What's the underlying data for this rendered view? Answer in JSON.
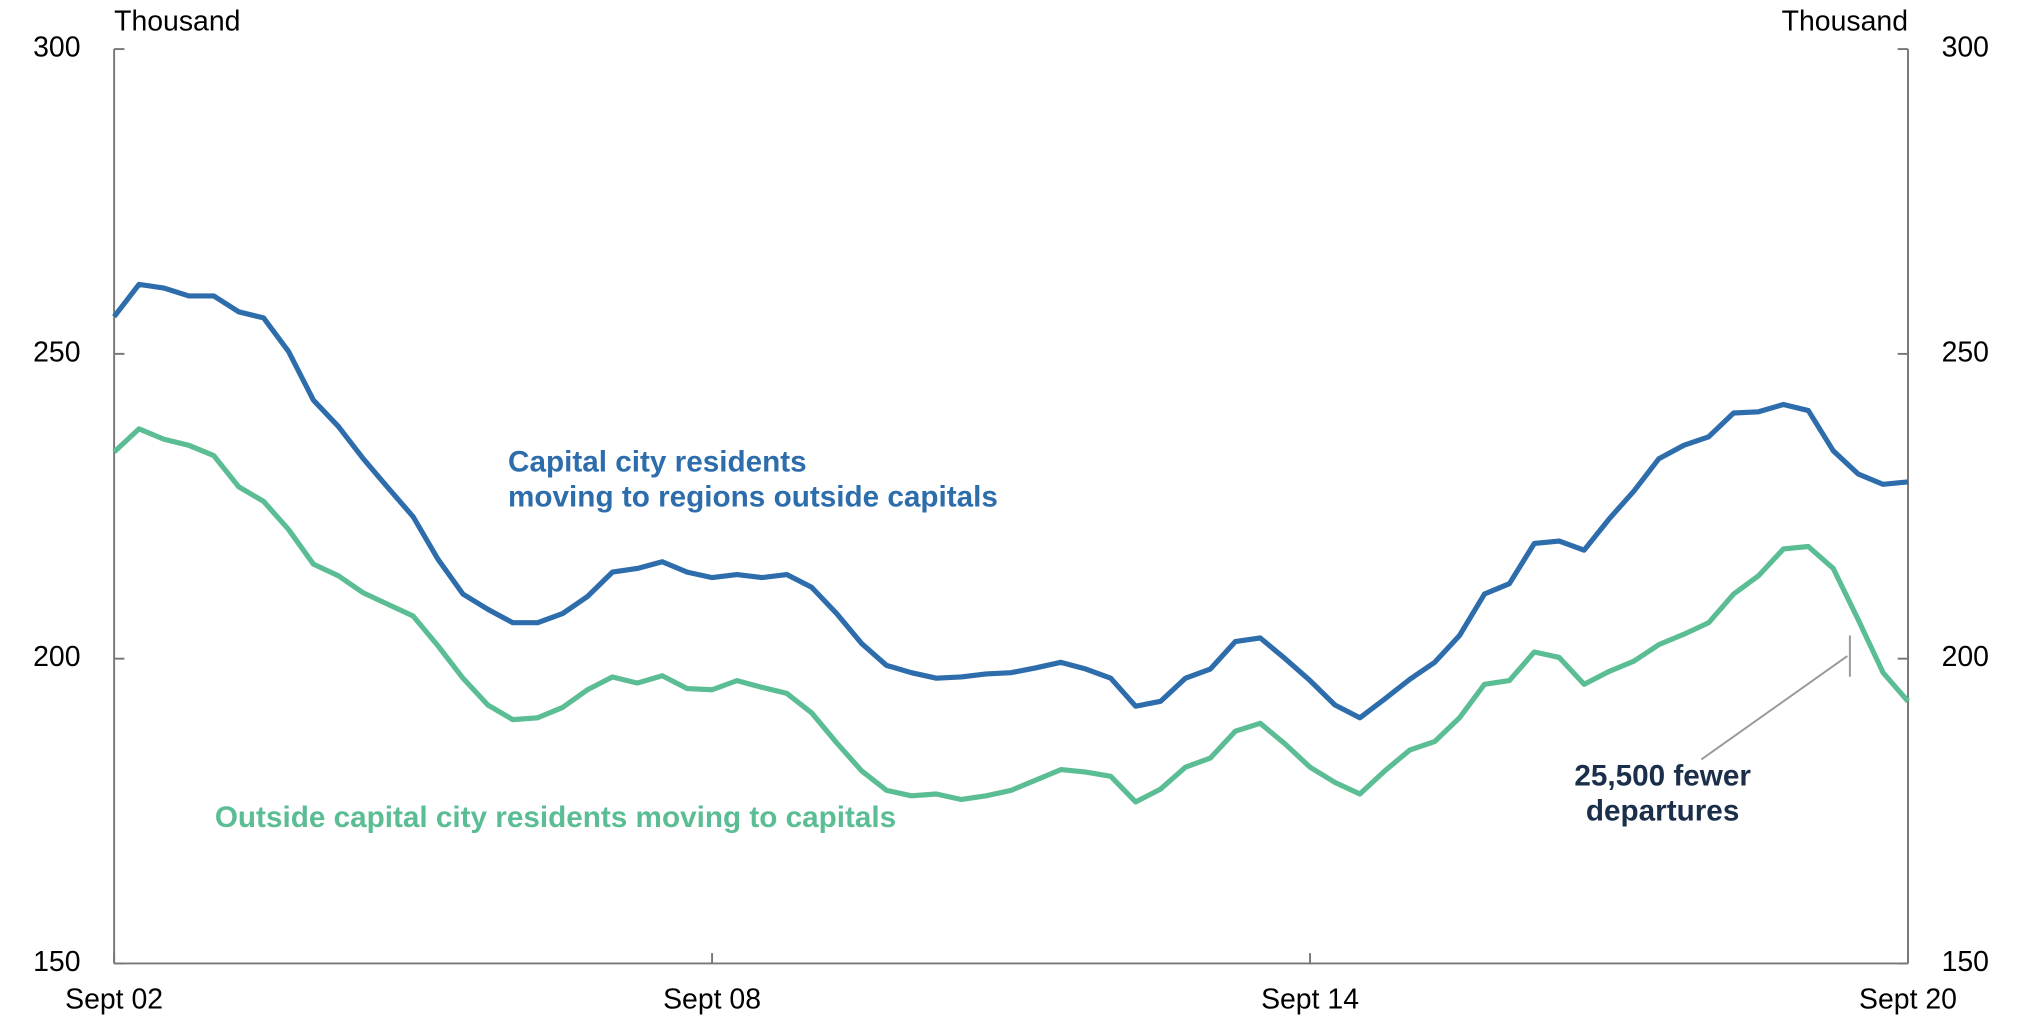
{
  "chart_data": {
    "type": "line",
    "y_unit_left": "Thousand",
    "y_unit_right": "Thousand",
    "categories": [
      "Sept 02",
      null,
      null,
      null,
      null,
      null,
      null,
      null,
      null,
      null,
      null,
      null,
      null,
      null,
      null,
      null,
      null,
      null,
      null,
      null,
      null,
      null,
      null,
      null,
      "Sept 08",
      null,
      null,
      null,
      null,
      null,
      null,
      null,
      null,
      null,
      null,
      null,
      null,
      null,
      null,
      null,
      null,
      null,
      null,
      null,
      null,
      null,
      null,
      null,
      "Sept 14",
      null,
      null,
      null,
      null,
      null,
      null,
      null,
      null,
      null,
      null,
      null,
      null,
      null,
      null,
      null,
      null,
      null,
      null,
      null,
      null,
      null,
      null,
      null,
      "Sept 20"
    ],
    "series": [
      {
        "name": "Capital city residents moving to regions outside capitals",
        "color": "#2e6dab",
        "values": [
          256.1,
          261.4,
          260.8,
          259.5,
          259.5,
          256.9,
          255.9,
          250.4,
          242.4,
          238.1,
          232.8,
          228.0,
          223.3,
          216.3,
          210.6,
          208.1,
          205.9,
          205.9,
          207.4,
          210.2,
          214.2,
          214.8,
          215.9,
          214.2,
          213.3,
          213.8,
          213.3,
          213.8,
          211.7,
          207.4,
          202.5,
          198.9,
          197.7,
          196.8,
          197.0,
          197.5,
          197.7,
          198.5,
          199.4,
          198.3,
          196.8,
          192.2,
          193.0,
          196.8,
          198.3,
          202.8,
          203.4,
          200.0,
          196.4,
          192.4,
          190.3,
          193.4,
          196.6,
          199.4,
          203.8,
          210.6,
          212.3,
          218.9,
          219.3,
          217.8,
          222.9,
          227.5,
          232.8,
          235.0,
          236.4,
          240.3,
          240.5,
          241.7,
          240.7,
          234.1,
          230.3,
          228.6,
          229.0
        ]
      },
      {
        "name": "Outside capital city residents moving to capitals",
        "color": "#5bbd93",
        "values": [
          233.9,
          237.7,
          236.0,
          235.0,
          233.3,
          228.2,
          225.8,
          221.2,
          215.5,
          213.6,
          210.8,
          208.9,
          207.0,
          202.1,
          196.8,
          192.4,
          190.0,
          190.3,
          192.0,
          194.9,
          197.0,
          196.0,
          197.2,
          195.1,
          194.9,
          196.4,
          195.3,
          194.3,
          191.1,
          186.2,
          181.6,
          178.4,
          177.5,
          177.8,
          176.9,
          177.5,
          178.4,
          180.1,
          181.8,
          181.4,
          180.7,
          176.5,
          178.6,
          182.2,
          183.7,
          188.1,
          189.4,
          186.0,
          182.2,
          179.7,
          177.8,
          181.6,
          185.0,
          186.4,
          190.3,
          195.8,
          196.4,
          201.1,
          200.2,
          195.8,
          197.9,
          199.6,
          202.3,
          204.0,
          205.9,
          210.6,
          213.6,
          218.0,
          218.4,
          214.8,
          206.4,
          197.7,
          193.0
        ]
      }
    ],
    "series_labels": [
      {
        "lines": [
          "Capital city residents",
          "moving to regions outside capitals"
        ],
        "color": "#2e6dab"
      },
      {
        "lines": [
          "Outside capital city residents moving to capitals"
        ],
        "color": "#5bbd93"
      }
    ],
    "annotations": [
      {
        "lines": [
          "25,500 fewer",
          "departures"
        ],
        "color": "#1b2e4a"
      }
    ],
    "ylim": [
      150,
      300
    ],
    "yticks": [
      150,
      200,
      250,
      300
    ],
    "y2lim": [
      150,
      300
    ],
    "y2ticks": [
      150,
      200,
      250,
      300
    ],
    "grid": false
  }
}
